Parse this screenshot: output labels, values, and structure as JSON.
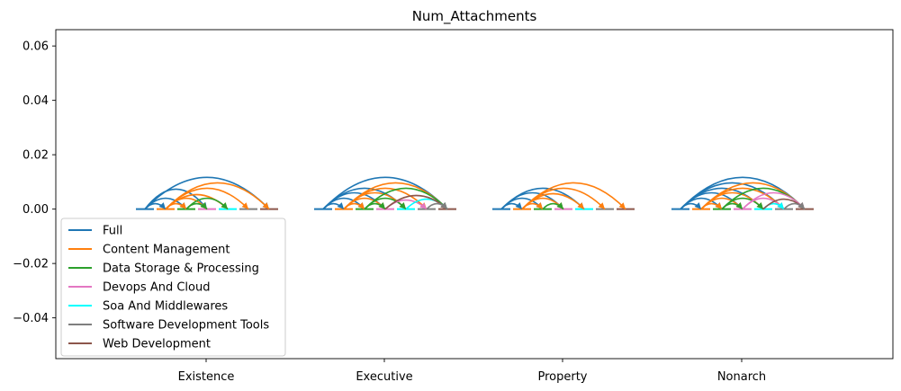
{
  "chart_data": {
    "type": "arc",
    "title": "Num_Attachments",
    "xlabel": "",
    "ylabel": "",
    "ylim": [
      -0.055,
      0.066
    ],
    "yticks": [
      0.06,
      0.04,
      0.02,
      0.0,
      -0.02,
      -0.04
    ],
    "ytick_labels": [
      "0.06",
      "0.04",
      "0.02",
      "0.00",
      "−0.02",
      "−0.04"
    ],
    "categories": [
      "Existence",
      "Executive",
      "Property",
      "Nonarch"
    ],
    "grid": false,
    "legend_position": "lower-left",
    "series": [
      {
        "name": "Full",
        "color": "#1f77b4"
      },
      {
        "name": "Content Management",
        "color": "#ff7f0e"
      },
      {
        "name": "Data Storage & Processing",
        "color": "#2ca02c"
      },
      {
        "name": "Devops And Cloud",
        "color": "#e377c2"
      },
      {
        "name": "Soa And Middlewares",
        "color": "#00ffff"
      },
      {
        "name": "Software Development Tools",
        "color": "#7f7f7f"
      },
      {
        "name": "Web Development",
        "color": "#8c564b"
      }
    ],
    "arcs": [
      {
        "category": "Existence",
        "links": [
          {
            "from": 0,
            "to": 1,
            "height": 0.003,
            "color": 0
          },
          {
            "from": 0,
            "to": 2,
            "height": 0.006,
            "color": 0
          },
          {
            "from": 0,
            "to": 3,
            "height": 0.011,
            "color": 0
          },
          {
            "from": 0,
            "to": 6,
            "height": 0.0175,
            "color": 0
          },
          {
            "from": 1,
            "to": 2,
            "height": 0.003,
            "color": 1
          },
          {
            "from": 1,
            "to": 3,
            "height": 0.006,
            "color": 1
          },
          {
            "from": 1,
            "to": 4,
            "height": 0.008,
            "color": 1
          },
          {
            "from": 1,
            "to": 5,
            "height": 0.0115,
            "color": 1
          },
          {
            "from": 1,
            "to": 6,
            "height": 0.0145,
            "color": 1
          },
          {
            "from": 2,
            "to": 4,
            "height": 0.006,
            "color": 2
          },
          {
            "from": 2,
            "to": 3,
            "height": 0.003,
            "color": 2
          }
        ]
      },
      {
        "category": "Executive",
        "links": [
          {
            "from": 0,
            "to": 1,
            "height": 0.003,
            "color": 0
          },
          {
            "from": 0,
            "to": 2,
            "height": 0.006,
            "color": 0
          },
          {
            "from": 0,
            "to": 3,
            "height": 0.009,
            "color": 0
          },
          {
            "from": 0,
            "to": 4,
            "height": 0.0115,
            "color": 0
          },
          {
            "from": 0,
            "to": 6,
            "height": 0.0175,
            "color": 0
          },
          {
            "from": 1,
            "to": 2,
            "height": 0.003,
            "color": 1
          },
          {
            "from": 1,
            "to": 3,
            "height": 0.006,
            "color": 1
          },
          {
            "from": 1,
            "to": 4,
            "height": 0.009,
            "color": 1
          },
          {
            "from": 1,
            "to": 5,
            "height": 0.0115,
            "color": 1
          },
          {
            "from": 1,
            "to": 6,
            "height": 0.0145,
            "color": 1
          },
          {
            "from": 2,
            "to": 3,
            "height": 0.003,
            "color": 2
          },
          {
            "from": 2,
            "to": 4,
            "height": 0.006,
            "color": 2
          },
          {
            "from": 2,
            "to": 6,
            "height": 0.0115,
            "color": 2
          },
          {
            "from": 3,
            "to": 5,
            "height": 0.005,
            "color": 3
          },
          {
            "from": 4,
            "to": 6,
            "height": 0.0055,
            "color": 4
          },
          {
            "from": 3,
            "to": 6,
            "height": 0.0075,
            "color": 6
          },
          {
            "from": 5,
            "to": 6,
            "height": 0.003,
            "color": 5
          }
        ]
      },
      {
        "category": "Property",
        "links": [
          {
            "from": 0,
            "to": 1,
            "height": 0.003,
            "color": 0
          },
          {
            "from": 0,
            "to": 2,
            "height": 0.006,
            "color": 0
          },
          {
            "from": 0,
            "to": 3,
            "height": 0.009,
            "color": 0
          },
          {
            "from": 0,
            "to": 4,
            "height": 0.0115,
            "color": 0
          },
          {
            "from": 1,
            "to": 2,
            "height": 0.003,
            "color": 1
          },
          {
            "from": 1,
            "to": 3,
            "height": 0.006,
            "color": 1
          },
          {
            "from": 1,
            "to": 4,
            "height": 0.0085,
            "color": 1
          },
          {
            "from": 1,
            "to": 5,
            "height": 0.0115,
            "color": 1
          },
          {
            "from": 1,
            "to": 6,
            "height": 0.0145,
            "color": 1
          },
          {
            "from": 2,
            "to": 3,
            "height": 0.003,
            "color": 2
          }
        ]
      },
      {
        "category": "Nonarch",
        "links": [
          {
            "from": 0,
            "to": 1,
            "height": 0.003,
            "color": 0
          },
          {
            "from": 0,
            "to": 2,
            "height": 0.006,
            "color": 0
          },
          {
            "from": 0,
            "to": 3,
            "height": 0.009,
            "color": 0
          },
          {
            "from": 0,
            "to": 4,
            "height": 0.0115,
            "color": 0
          },
          {
            "from": 0,
            "to": 5,
            "height": 0.0145,
            "color": 0
          },
          {
            "from": 0,
            "to": 6,
            "height": 0.0175,
            "color": 0
          },
          {
            "from": 1,
            "to": 2,
            "height": 0.003,
            "color": 1
          },
          {
            "from": 1,
            "to": 3,
            "height": 0.006,
            "color": 1
          },
          {
            "from": 1,
            "to": 4,
            "height": 0.009,
            "color": 1
          },
          {
            "from": 1,
            "to": 5,
            "height": 0.0115,
            "color": 1
          },
          {
            "from": 1,
            "to": 6,
            "height": 0.0145,
            "color": 1
          },
          {
            "from": 2,
            "to": 3,
            "height": 0.003,
            "color": 2
          },
          {
            "from": 2,
            "to": 4,
            "height": 0.006,
            "color": 2
          },
          {
            "from": 2,
            "to": 6,
            "height": 0.0115,
            "color": 2
          },
          {
            "from": 3,
            "to": 5,
            "height": 0.006,
            "color": 3
          },
          {
            "from": 3,
            "to": 6,
            "height": 0.009,
            "color": 3
          },
          {
            "from": 4,
            "to": 5,
            "height": 0.003,
            "color": 4
          },
          {
            "from": 4,
            "to": 6,
            "height": 0.0055,
            "color": 6
          },
          {
            "from": 5,
            "to": 6,
            "height": 0.003,
            "color": 5
          }
        ]
      }
    ]
  }
}
